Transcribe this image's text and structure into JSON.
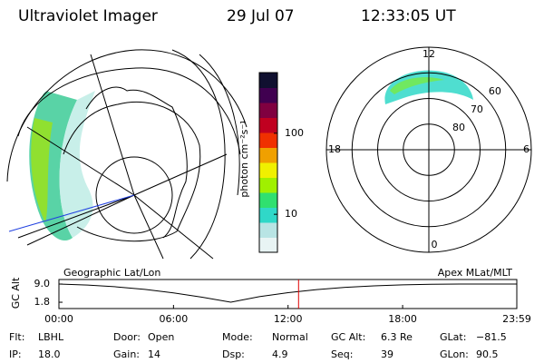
{
  "header": {
    "title": "Ultraviolet Imager",
    "date": "29 Jul 07",
    "time": "12:33:05 UT"
  },
  "colorbar": {
    "label": "photon cm⁻²s⁻¹",
    "scale": "log",
    "ylim": [
      3.4,
      560
    ],
    "ticks": [
      10,
      100
    ],
    "colors": [
      "#e8f4f4",
      "#b8e4e4",
      "#30d8c8",
      "#30e070",
      "#a0f000",
      "#f0f000",
      "#f0a000",
      "#f03000",
      "#c00020",
      "#800040",
      "#400050",
      "#101030"
    ]
  },
  "polar": {
    "lim": [
      90,
      50
    ],
    "mlt": [
      12,
      18,
      6,
      0
    ],
    "rings": [
      60,
      70,
      80
    ]
  },
  "chart_data": {
    "type": "line",
    "ylabel": "GC Alt",
    "left_label": "Geographic Lat/Lon",
    "right_label": "Apex  MLat/MLT",
    "x": [
      0,
      1.5,
      3,
      4.5,
      6,
      7.5,
      9,
      10.5,
      12,
      13.5,
      15,
      16.5,
      18,
      19.5,
      21,
      22.5,
      23.98
    ],
    "values": [
      9.0,
      8.6,
      7.9,
      6.9,
      5.5,
      3.8,
      1.8,
      4.0,
      5.6,
      6.8,
      7.7,
      8.3,
      8.7,
      8.9,
      9.0,
      9.0,
      9.0
    ],
    "color": "#000000",
    "marker_x": 12.55,
    "marker_color": "#e00000",
    "xlim": [
      0,
      23.98
    ],
    "ylim": [
      -0.7,
      10.8
    ],
    "xticks": [
      {
        "value": 0,
        "label": "00:00"
      },
      {
        "value": 6,
        "label": "06:00"
      },
      {
        "value": 12,
        "label": "12:00"
      },
      {
        "value": 18,
        "label": "18:00"
      },
      {
        "value": 23.98,
        "label": "23:59"
      }
    ],
    "yticks": [
      {
        "value": 9,
        "label": "9.0"
      },
      {
        "value": 1.8,
        "label": "1.8"
      }
    ]
  },
  "status": [
    [
      {
        "label": "Flt:",
        "value": "LBHL"
      },
      {
        "label": "Door:",
        "value": "Open"
      },
      {
        "label": "Mode:",
        "value": "Normal"
      },
      {
        "label": "GC Alt:",
        "value": "6.3 Re"
      },
      {
        "label": "GLat:",
        "value": "−81.5"
      }
    ],
    [
      {
        "label": "IP:",
        "value": "18.0"
      },
      {
        "label": "Gain:",
        "value": "14"
      },
      {
        "label": "Dsp:",
        "value": "4.9"
      },
      {
        "label": "Seq:",
        "value": "39"
      },
      {
        "label": "GLon:",
        "value": "90.5"
      }
    ]
  ]
}
